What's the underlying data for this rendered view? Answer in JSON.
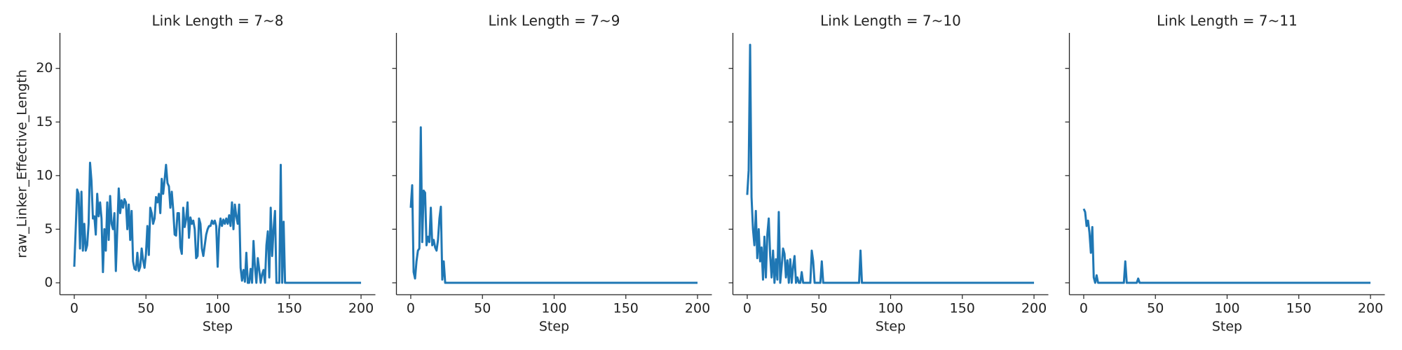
{
  "chart_data": [
    {
      "type": "line",
      "title": "Link Length = 7~8",
      "xlabel": "Step",
      "ylabel": "raw_Linker_Effective_Length",
      "color": "#1f77b4",
      "xlim": [
        -10,
        210
      ],
      "ylim": [
        -1.11,
        23.31
      ],
      "xticks": [
        0,
        50,
        100,
        150,
        200
      ],
      "yticks": [
        0,
        5,
        10,
        15,
        20
      ],
      "x": [
        0,
        1,
        2,
        3,
        4,
        5,
        6,
        7,
        8,
        9,
        10,
        11,
        12,
        13,
        14,
        15,
        16,
        17,
        18,
        19,
        20,
        21,
        22,
        23,
        24,
        25,
        26,
        27,
        28,
        29,
        30,
        31,
        32,
        33,
        34,
        35,
        36,
        37,
        38,
        39,
        40,
        41,
        42,
        43,
        44,
        45,
        46,
        47,
        48,
        49,
        50,
        51,
        52,
        53,
        54,
        55,
        56,
        57,
        58,
        59,
        60,
        61,
        62,
        63,
        64,
        65,
        66,
        67,
        68,
        69,
        70,
        71,
        72,
        73,
        74,
        75,
        76,
        77,
        78,
        79,
        80,
        81,
        82,
        83,
        84,
        85,
        86,
        87,
        88,
        89,
        90,
        91,
        92,
        93,
        94,
        95,
        96,
        97,
        98,
        99,
        100,
        101,
        102,
        103,
        104,
        105,
        106,
        107,
        108,
        109,
        110,
        111,
        112,
        113,
        114,
        115,
        116,
        117,
        118,
        119,
        120,
        121,
        122,
        123,
        124,
        125,
        126,
        127,
        128,
        129,
        130,
        131,
        132,
        133,
        134,
        135,
        136,
        137,
        138,
        139,
        140,
        141,
        142,
        143,
        144,
        145,
        146,
        147,
        200
      ],
      "values": [
        1.5,
        5,
        8.7,
        8.3,
        3.2,
        8.5,
        3,
        5.5,
        3,
        3.5,
        5.5,
        11.2,
        9.5,
        6,
        6.2,
        4.5,
        8.3,
        6.2,
        7.5,
        6,
        1,
        5,
        3,
        7.5,
        4,
        8.1,
        5.5,
        5,
        6.5,
        1.1,
        5,
        8.8,
        6.5,
        7.7,
        7,
        7.8,
        7.5,
        5,
        7.3,
        4,
        6.7,
        2,
        1.3,
        1.2,
        2.8,
        1.1,
        1.5,
        3.2,
        2.1,
        1.4,
        2.7,
        5.3,
        2.6,
        7,
        6.5,
        5.5,
        6,
        8,
        7.5,
        8.3,
        6.5,
        9.7,
        8.3,
        9.6,
        11,
        9.3,
        9,
        7,
        8.5,
        6.8,
        4.5,
        4.4,
        6.5,
        6.5,
        3.3,
        2.7,
        7,
        5.2,
        5.9,
        7.5,
        4.2,
        6.1,
        5.5,
        5.8,
        5,
        2.3,
        2.5,
        6,
        5.5,
        3.2,
        2.5,
        3.5,
        4.5,
        5,
        5.3,
        5.3,
        5.8,
        5.5,
        5.8,
        5.3,
        1.5,
        5,
        6,
        5.3,
        5.9,
        5.5,
        6,
        5.5,
        6.3,
        5.3,
        7.5,
        5,
        7.3,
        6.2,
        5.5,
        7.3,
        1.4,
        0.2,
        1.2,
        0.1,
        2.8,
        0,
        0,
        1.3,
        0,
        3.9,
        1.5,
        0,
        2.3,
        1.2,
        0,
        0.8,
        1.2,
        0,
        3.5,
        4.8,
        0.5,
        7,
        2.5,
        5,
        6.7,
        0,
        0,
        0,
        11,
        0,
        5.7,
        0,
        0
      ]
    },
    {
      "type": "line",
      "title": "Link Length = 7~9",
      "xlabel": "Step",
      "color": "#1f77b4",
      "xlim": [
        -10,
        210
      ],
      "ylim": [
        -1.11,
        23.31
      ],
      "xticks": [
        0,
        50,
        100,
        150,
        200
      ],
      "x": [
        0,
        1,
        2,
        3,
        4,
        5,
        6,
        7,
        8,
        9,
        10,
        11,
        12,
        13,
        14,
        15,
        16,
        17,
        18,
        19,
        20,
        21,
        22,
        23,
        24,
        25,
        200
      ],
      "values": [
        7,
        9.1,
        1,
        0.4,
        2,
        3,
        3.2,
        14.5,
        3.8,
        8.6,
        8.4,
        3.5,
        4.3,
        3.8,
        7,
        3.5,
        4,
        3.3,
        3,
        4,
        6,
        7.1,
        0.3,
        2,
        0,
        0,
        0
      ]
    },
    {
      "type": "line",
      "title": "Link Length = 7~10",
      "xlabel": "Step",
      "color": "#1f77b4",
      "xlim": [
        -10,
        210
      ],
      "ylim": [
        -1.11,
        23.31
      ],
      "xticks": [
        0,
        50,
        100,
        150,
        200
      ],
      "x": [
        0,
        1,
        2,
        3,
        4,
        5,
        6,
        7,
        8,
        9,
        10,
        11,
        12,
        13,
        14,
        15,
        16,
        17,
        18,
        19,
        20,
        21,
        22,
        23,
        24,
        25,
        26,
        27,
        28,
        29,
        30,
        31,
        32,
        33,
        34,
        35,
        36,
        37,
        38,
        39,
        44,
        45,
        46,
        47,
        51,
        52,
        53,
        78,
        79,
        80,
        200
      ],
      "values": [
        8.2,
        10.5,
        22.2,
        8,
        5,
        3.5,
        6.7,
        2.3,
        5,
        2,
        3.3,
        0.3,
        4.3,
        0.5,
        4.5,
        6,
        2.5,
        0.5,
        3,
        0,
        2.2,
        0.3,
        6.6,
        0,
        1.5,
        3.2,
        2.7,
        0.5,
        2.1,
        0,
        2.2,
        0,
        1.5,
        2.5,
        0,
        0.5,
        0,
        0,
        1,
        0,
        0,
        3,
        2,
        0,
        0,
        2,
        0,
        0,
        3,
        0,
        0
      ]
    },
    {
      "type": "line",
      "title": "Link Length = 7~11",
      "xlabel": "Step",
      "color": "#1f77b4",
      "xlim": [
        -10,
        210
      ],
      "ylim": [
        -1.11,
        23.31
      ],
      "xticks": [
        0,
        50,
        100,
        150,
        200
      ],
      "x": [
        0,
        1,
        2,
        3,
        4,
        5,
        6,
        7,
        8,
        9,
        10,
        28,
        29,
        30,
        37,
        38,
        39,
        200
      ],
      "values": [
        6.9,
        6.6,
        5.3,
        5.8,
        4.7,
        2.8,
        5.2,
        0.5,
        0,
        0.7,
        0,
        0,
        2,
        0,
        0,
        0.4,
        0,
        0
      ]
    }
  ]
}
